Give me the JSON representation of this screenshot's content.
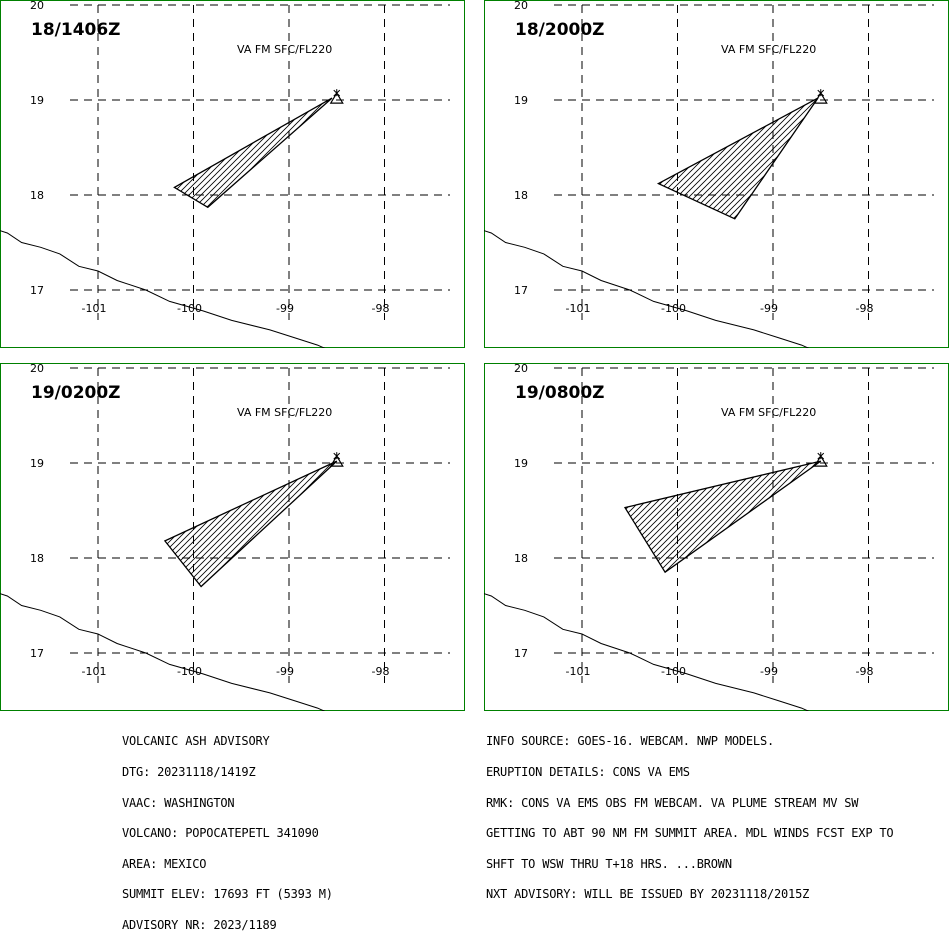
{
  "colors": {
    "frame": "#008000",
    "ink": "#000000",
    "background": "#ffffff"
  },
  "panels": [
    {
      "time_label": "18/1406Z",
      "level": "VA FM SFC/FL220",
      "plume": [
        [
          -98.55,
          19.02
        ],
        [
          -99.85,
          17.87
        ],
        [
          -100.2,
          18.08
        ]
      ]
    },
    {
      "time_label": "18/2000Z",
      "level": "VA FM SFC/FL220",
      "plume": [
        [
          -98.53,
          19.02
        ],
        [
          -99.4,
          17.75
        ],
        [
          -100.2,
          18.12
        ]
      ]
    },
    {
      "time_label": "19/0200Z",
      "level": "VA FM SFC/FL220",
      "plume": [
        [
          -98.5,
          19.02
        ],
        [
          -100.3,
          18.18
        ],
        [
          -99.92,
          17.7
        ]
      ]
    },
    {
      "time_label": "19/0800Z",
      "level": "VA FM SFC/FL220",
      "plume": [
        [
          -98.5,
          19.02
        ],
        [
          -100.55,
          18.53
        ],
        [
          -100.13,
          17.85
        ]
      ]
    }
  ],
  "axes": {
    "x_ticks": [
      -101,
      -100,
      -99,
      -98
    ],
    "y_ticks": [
      17,
      18,
      19,
      20
    ],
    "x_tick_labels": [
      "-101",
      "-100",
      "-99",
      "-98"
    ],
    "y_tick_labels": [
      "17",
      "18",
      "19",
      "20"
    ],
    "x_range": [
      -101.6,
      -97.3
    ],
    "y_range": [
      16.67,
      20.0
    ]
  },
  "volcano": {
    "name": "POPOCATEPETL",
    "lon": -98.5,
    "lat": 19.02
  },
  "coastline": [
    [
      -102.1,
      17.65
    ],
    [
      -101.95,
      17.6
    ],
    [
      -101.8,
      17.5
    ],
    [
      -101.6,
      17.45
    ],
    [
      -101.4,
      17.38
    ],
    [
      -101.2,
      17.25
    ],
    [
      -101.0,
      17.2
    ],
    [
      -100.8,
      17.1
    ],
    [
      -100.5,
      17.0
    ],
    [
      -100.25,
      16.88
    ],
    [
      -99.9,
      16.78
    ],
    [
      -99.6,
      16.68
    ],
    [
      -99.2,
      16.58
    ],
    [
      -98.95,
      16.5
    ],
    [
      -98.7,
      16.42
    ],
    [
      -98.5,
      16.33
    ]
  ],
  "advisory": {
    "left": [
      "VOLCANIC ASH ADVISORY",
      "DTG: 20231118/1419Z",
      "VAAC: WASHINGTON",
      "VOLCANO: POPOCATEPETL 341090",
      "AREA: MEXICO",
      "SUMMIT ELEV: 17693 FT (5393 M)",
      "ADVISORY NR: 2023/1189"
    ],
    "right": [
      "INFO SOURCE: GOES-16. WEBCAM. NWP MODELS.",
      "ERUPTION DETAILS: CONS VA EMS",
      "RMK: CONS VA EMS OBS FM WEBCAM. VA PLUME STREAM MV SW",
      "GETTING TO ABT 90 NM FM SUMMIT AREA. MDL WINDS FCST EXP TO",
      "SHFT TO WSW THRU T+18 HRS. ...BROWN",
      "NXT ADVISORY: WILL BE ISSUED BY 20231118/2015Z"
    ]
  }
}
